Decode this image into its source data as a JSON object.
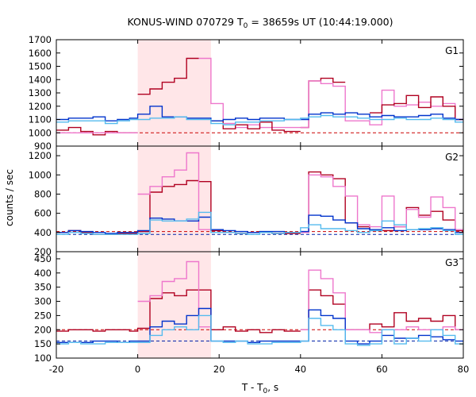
{
  "chart_data": {
    "type": "line",
    "title": {
      "prefix": "KONUS-WIND 070729 T",
      "sub": "0",
      "suffix": " = 38659s UT (10:44:19.000)"
    },
    "xlabel": {
      "main": "T - T",
      "sub": "0",
      "unit": ", s"
    },
    "ylabel": "counts / sec",
    "xlim": [
      -20,
      80
    ],
    "x_ticks": [
      -20,
      0,
      20,
      40,
      60,
      80
    ],
    "highlight_interval": [
      0,
      18
    ],
    "colors": {
      "dark_red": "#b00020",
      "blue": "#0033cc",
      "light_blue": "#55bbee",
      "pink": "#ee77cc",
      "highlight": "#ffe6e8",
      "background_dashed_red": "#cc0000",
      "background_dashed_blue": "#0022aa"
    },
    "panels": [
      {
        "label": "G1",
        "ylim": [
          900,
          1700
        ],
        "y_ticks": [
          900,
          1000,
          1100,
          1200,
          1300,
          1400,
          1500,
          1600,
          1700
        ],
        "background_levels": [
          1000
        ],
        "series": [
          {
            "color": "dark_red",
            "edges": [
              -20,
              -17,
              -14,
              -11,
              -8,
              -5,
              -2,
              0
            ],
            "values": [
              1020,
              1040,
              1010,
              985,
              1010,
              1000,
              1000
            ]
          },
          {
            "color": "pink",
            "edges": [
              -20,
              -2,
              0
            ],
            "values": [
              1000,
              1000
            ]
          },
          {
            "color": "dark_red",
            "edges": [
              0,
              3,
              6,
              9,
              12,
              15
            ],
            "values": [
              1290,
              1330,
              1380,
              1410,
              1560
            ]
          },
          {
            "color": "pink",
            "edges": [
              15,
              18,
              21,
              24,
              27,
              30,
              33,
              36,
              40
            ],
            "values": [
              1560,
              1220,
              1070,
              1040,
              1060,
              1040,
              1040,
              1040
            ]
          },
          {
            "color": "dark_red",
            "edges": [
              18,
              21,
              24,
              27,
              30,
              33,
              36,
              40
            ],
            "values": [
              1090,
              1030,
              1060,
              1030,
              1080,
              1020,
              1010
            ]
          },
          {
            "color": "dark_red",
            "edges": [
              40,
              42,
              45,
              48,
              51
            ],
            "values": [
              1040,
              1390,
              1410,
              1380,
              1380
            ]
          },
          {
            "color": "pink",
            "edges": [
              40,
              42,
              45,
              48,
              51,
              54,
              57,
              60,
              63,
              66,
              69,
              72,
              75,
              78,
              80
            ],
            "values": [
              1040,
              1390,
              1370,
              1350,
              1090,
              1090,
              1060,
              1320,
              1200,
              1210,
              1230,
              1200,
              1220,
              1100
            ]
          },
          {
            "color": "dark_red",
            "edges": [
              57,
              60,
              63,
              66,
              69,
              72,
              75,
              78,
              80
            ],
            "values": [
              1150,
              1210,
              1220,
              1280,
              1190,
              1270,
              1200,
              1100
            ]
          },
          {
            "color": "blue",
            "edges": [
              -20,
              -17,
              -14,
              -11,
              -8,
              -5,
              -2,
              0,
              3,
              6,
              9,
              12,
              15,
              18,
              21,
              24,
              27,
              30,
              33,
              36,
              40,
              42,
              45,
              48,
              51,
              54,
              57,
              60,
              63,
              66,
              69,
              72,
              75,
              78,
              80
            ],
            "values": [
              1100,
              1110,
              1110,
              1120,
              1090,
              1100,
              1110,
              1140,
              1200,
              1120,
              1120,
              1110,
              1110,
              1090,
              1100,
              1110,
              1100,
              1110,
              1110,
              1100,
              1100,
              1140,
              1150,
              1140,
              1150,
              1140,
              1120,
              1130,
              1120,
              1120,
              1130,
              1140,
              1110,
              1100
            ]
          },
          {
            "color": "light_blue",
            "edges": [
              -20,
              -17,
              -14,
              -11,
              -8,
              -5,
              -2,
              0,
              3,
              6,
              9,
              12,
              15,
              18,
              21,
              24,
              27,
              30,
              33,
              36,
              40,
              42,
              45,
              48,
              51,
              54,
              57,
              60,
              63,
              66,
              69,
              72,
              75,
              78,
              80
            ],
            "values": [
              1080,
              1090,
              1090,
              1090,
              1070,
              1090,
              1100,
              1100,
              1110,
              1110,
              1120,
              1100,
              1100,
              1070,
              1060,
              1080,
              1080,
              1090,
              1090,
              1100,
              1110,
              1120,
              1130,
              1120,
              1120,
              1110,
              1100,
              1100,
              1110,
              1100,
              1100,
              1110,
              1100,
              1080
            ]
          }
        ]
      },
      {
        "label": "G2",
        "ylim": [
          200,
          1300
        ],
        "y_ticks": [
          200,
          400,
          600,
          800,
          1000,
          1200
        ],
        "background_levels": [
          410,
          380
        ],
        "series": [
          {
            "color": "dark_red",
            "edges": [
              -20,
              -17,
              -14,
              -11,
              -8,
              -5,
              -2,
              0,
              3,
              6,
              9,
              12,
              15,
              18,
              21,
              24,
              27,
              30,
              33,
              36,
              40
            ],
            "values": [
              400,
              420,
              400,
              380,
              380,
              390,
              390,
              410,
              820,
              880,
              900,
              940,
              930,
              420,
              400,
              390,
              400,
              400,
              390,
              390
            ]
          },
          {
            "color": "pink",
            "edges": [
              0,
              3,
              6,
              9,
              12,
              15,
              18
            ],
            "values": [
              800,
              880,
              980,
              1050,
              1230,
              430
            ]
          },
          {
            "color": "dark_red",
            "edges": [
              40,
              42,
              45,
              48,
              51,
              54,
              57,
              60,
              63,
              66,
              69,
              72,
              75,
              78,
              80
            ],
            "values": [
              400,
              1030,
              1000,
              960,
              500,
              460,
              420,
              420,
              460,
              660,
              580,
              620,
              530,
              420
            ]
          },
          {
            "color": "pink",
            "edges": [
              40,
              42,
              45,
              48,
              51,
              54,
              57,
              60,
              63,
              66,
              69,
              72,
              75,
              78,
              80
            ],
            "values": [
              400,
              1000,
              980,
              880,
              780,
              480,
              460,
              780,
              460,
              640,
              560,
              770,
              660,
              430
            ]
          },
          {
            "color": "blue",
            "edges": [
              -20,
              -17,
              -14,
              -11,
              -8,
              -5,
              -2,
              0,
              3,
              6,
              9,
              12,
              15,
              18,
              21,
              24,
              27,
              30,
              33,
              36,
              40,
              42,
              45,
              48,
              51,
              54,
              57,
              60,
              63,
              66,
              69,
              72,
              75,
              78,
              80
            ],
            "values": [
              400,
              420,
              410,
              400,
              390,
              400,
              400,
              420,
              550,
              540,
              520,
              520,
              560,
              430,
              420,
              410,
              400,
              410,
              410,
              400,
              410,
              580,
              570,
              530,
              500,
              440,
              430,
              450,
              420,
              430,
              430,
              440,
              430,
              400
            ]
          },
          {
            "color": "light_blue",
            "edges": [
              -20,
              -17,
              -14,
              -11,
              -8,
              -5,
              -2,
              0,
              3,
              6,
              9,
              12,
              15,
              18,
              21,
              24,
              27,
              30,
              33,
              36,
              40,
              42,
              45,
              48,
              51,
              54,
              57,
              60,
              63,
              66,
              69,
              72,
              75,
              78,
              80
            ],
            "values": [
              380,
              400,
              390,
              380,
              380,
              380,
              380,
              390,
              530,
              520,
              520,
              540,
              610,
              400,
              400,
              390,
              380,
              400,
              390,
              400,
              450,
              480,
              440,
              440,
              420,
              400,
              420,
              520,
              480,
              430,
              440,
              450,
              420,
              380
            ]
          }
        ]
      },
      {
        "label": "G3",
        "ylim": [
          100,
          475
        ],
        "y_ticks": [
          100,
          150,
          200,
          250,
          300,
          350,
          400,
          450
        ],
        "background_levels": [
          200,
          160
        ],
        "series": [
          {
            "color": "dark_red",
            "edges": [
              -20,
              -17,
              -14,
              -11,
              -8,
              -5,
              -2,
              0,
              3,
              6,
              9,
              12,
              15,
              18,
              21,
              24,
              27,
              30,
              33,
              36,
              40
            ],
            "values": [
              195,
              200,
              200,
              195,
              200,
              200,
              195,
              205,
              310,
              330,
              320,
              340,
              340,
              200,
              210,
              195,
              200,
              190,
              200,
              195
            ]
          },
          {
            "color": "pink",
            "edges": [
              0,
              3,
              6,
              9,
              12,
              15,
              18
            ],
            "values": [
              300,
              320,
              370,
              380,
              440,
              210
            ]
          },
          {
            "color": "dark_red",
            "edges": [
              40,
              42,
              45,
              48,
              51,
              54,
              57,
              60,
              63,
              66,
              69,
              72,
              75,
              78,
              80
            ],
            "values": [
              200,
              340,
              320,
              290,
              200,
              200,
              220,
              210,
              260,
              230,
              240,
              230,
              250,
              200
            ]
          },
          {
            "color": "pink",
            "edges": [
              40,
              42,
              45,
              48,
              51,
              54,
              57,
              60,
              63,
              66,
              69,
              72,
              75,
              78,
              80
            ],
            "values": [
              200,
              410,
              380,
              330,
              200,
              200,
              190,
              200,
              200,
              210,
              200,
              200,
              210,
              200
            ]
          },
          {
            "color": "blue",
            "edges": [
              -20,
              -17,
              -14,
              -11,
              -8,
              -5,
              -2,
              0,
              3,
              6,
              9,
              12,
              15,
              18,
              21,
              24,
              27,
              30,
              33,
              36,
              40,
              42,
              45,
              48,
              51,
              54,
              57,
              60,
              63,
              66,
              69,
              72,
              75,
              78,
              80
            ],
            "values": [
              155,
              155,
              155,
              160,
              160,
              155,
              160,
              160,
              210,
              230,
              220,
              250,
              275,
              160,
              160,
              160,
              155,
              160,
              160,
              160,
              160,
              270,
              250,
              240,
              160,
              150,
              160,
              180,
              170,
              170,
              180,
              175,
              165,
              160
            ]
          },
          {
            "color": "light_blue",
            "edges": [
              -20,
              -17,
              -14,
              -11,
              -8,
              -5,
              -2,
              0,
              3,
              6,
              9,
              12,
              15,
              18,
              21,
              24,
              27,
              30,
              33,
              36,
              40,
              42,
              45,
              48,
              51,
              54,
              57,
              60,
              63,
              66,
              69,
              72,
              75,
              78,
              80
            ],
            "values": [
              150,
              155,
              150,
              150,
              155,
              155,
              155,
              155,
              180,
              200,
              210,
              200,
              250,
              160,
              155,
              160,
              150,
              150,
              155,
              155,
              160,
              240,
              215,
              200,
              150,
              145,
              150,
              200,
              150,
              170,
              160,
              200,
              180,
              150
            ]
          }
        ]
      }
    ]
  }
}
